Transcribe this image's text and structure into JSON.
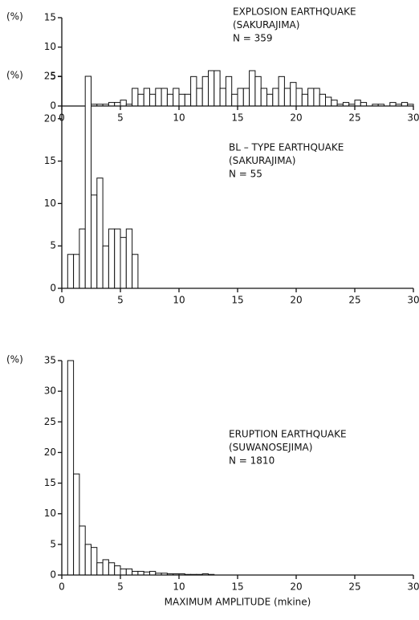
{
  "chart_data": [
    {
      "type": "histogram",
      "ylabel": "(%)",
      "annotation": [
        "EXPLOSION EARTHQUAKE",
        "(SAKURAJIMA)",
        "N = 359"
      ],
      "bins": [
        2.5,
        3,
        3.5,
        4,
        4.5,
        5,
        5.5,
        6,
        6.5,
        7,
        7.5,
        8,
        8.5,
        9,
        9.5,
        10,
        10.5,
        11,
        11.5,
        12,
        12.5,
        13,
        13.5,
        14,
        14.5,
        15,
        15.5,
        16,
        16.5,
        17,
        17.5,
        18,
        18.5,
        19,
        19.5,
        20,
        20.5,
        21,
        21.5,
        22,
        22.5,
        23,
        23.5,
        24,
        24.5,
        25,
        25.5,
        26,
        26.5,
        27,
        27.5,
        28,
        28.5,
        29,
        29.5,
        30
      ],
      "values": [
        0.3,
        0.3,
        0.3,
        0.6,
        0.6,
        1,
        0.3,
        3,
        2,
        3,
        2,
        3,
        3,
        2,
        3,
        2,
        2,
        5,
        3,
        5,
        6,
        6,
        3,
        5,
        2,
        3,
        3,
        6,
        5,
        3,
        2,
        3,
        5,
        3,
        4,
        3,
        2,
        3,
        3,
        2,
        1.5,
        1,
        0.3,
        0.6,
        0.3,
        1,
        0.6,
        0,
        0.3,
        0.3,
        0,
        0.6,
        0.3,
        0.6,
        0.3
      ],
      "xlim": [
        0,
        30
      ],
      "xticks": [
        0,
        5,
        10,
        15,
        20,
        25,
        30
      ],
      "ylim": [
        0,
        15
      ],
      "yticks": [
        0,
        5,
        10,
        15
      ]
    },
    {
      "type": "histogram",
      "ylabel": "(%)",
      "annotation": [
        "BL – TYPE EARTHQUAKE",
        "(SAKURAJIMA)",
        "N = 55"
      ],
      "bins": [
        0.5,
        1,
        1.5,
        2,
        2.5,
        3,
        3.5,
        4,
        4.5,
        5,
        5.5,
        6,
        6.5
      ],
      "values": [
        4,
        4,
        7,
        25,
        11,
        13,
        5,
        7,
        7,
        6,
        7,
        4
      ],
      "xlim": [
        0,
        30
      ],
      "xticks": [
        0,
        5,
        10,
        15,
        20,
        25,
        30
      ],
      "ylim": [
        0,
        25
      ],
      "yticks": [
        0,
        5,
        10,
        15,
        20,
        25
      ]
    },
    {
      "type": "histogram",
      "ylabel": "(%)",
      "annotation": [
        "ERUPTION EARTHQUAKE",
        "(SUWANOSEJIMA)",
        "N = 1810"
      ],
      "bins": [
        0.5,
        1,
        1.5,
        2,
        2.5,
        3,
        3.5,
        4,
        4.5,
        5,
        5.5,
        6,
        6.5,
        7,
        7.5,
        8,
        8.5,
        9,
        9.5,
        10,
        10.5,
        11,
        11.5,
        12,
        12.5,
        13
      ],
      "values": [
        35,
        16.5,
        8,
        5,
        4.5,
        2,
        2.5,
        2,
        1.5,
        1,
        1,
        0.6,
        0.6,
        0.5,
        0.6,
        0.3,
        0.3,
        0.2,
        0.2,
        0.2,
        0.1,
        0.1,
        0.1,
        0.2,
        0.1
      ],
      "xlim": [
        0,
        30
      ],
      "xticks": [
        0,
        5,
        10,
        15,
        20,
        25,
        30
      ],
      "ylim": [
        0,
        35
      ],
      "yticks": [
        0,
        5,
        10,
        15,
        20,
        25,
        30,
        35
      ],
      "xlabel": "MAXIMUM AMPLITUDE (mkine)"
    }
  ]
}
